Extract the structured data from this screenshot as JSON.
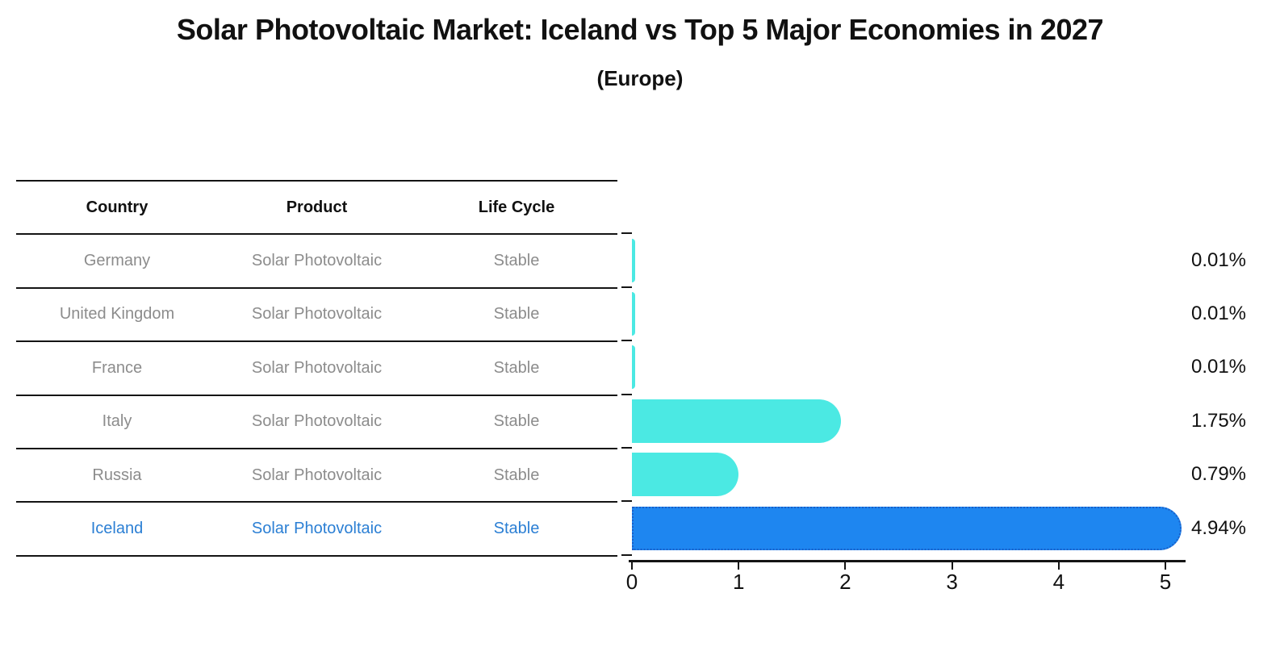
{
  "title": "Solar Photovoltaic Market: Iceland vs Top 5 Major Economies in 2027",
  "subtitle": "(Europe)",
  "colors": {
    "bar_default": "#4be9e3",
    "bar_highlight": "#1e86f0",
    "highlight_border": "#1a5fc8",
    "highlight_text": "#2b7fd4",
    "row_text": "#8c8c8c",
    "header_text": "#111111",
    "line": "#141414"
  },
  "table": {
    "headers": [
      "Country",
      "Product",
      "Life Cycle"
    ],
    "rows": [
      {
        "country": "Germany",
        "product": "Solar Photovoltaic",
        "life_cycle": "Stable",
        "highlight": false
      },
      {
        "country": "United Kingdom",
        "product": "Solar Photovoltaic",
        "life_cycle": "Stable",
        "highlight": false
      },
      {
        "country": "France",
        "product": "Solar Photovoltaic",
        "life_cycle": "Stable",
        "highlight": false
      },
      {
        "country": "Italy",
        "product": "Solar Photovoltaic",
        "life_cycle": "Stable",
        "highlight": false
      },
      {
        "country": "Russia",
        "product": "Solar Photovoltaic",
        "life_cycle": "Stable",
        "highlight": false
      },
      {
        "country": "Iceland",
        "product": "Solar Photovoltaic",
        "life_cycle": "Stable",
        "highlight": true
      }
    ]
  },
  "chart_data": {
    "type": "bar",
    "orientation": "horizontal",
    "title": "Solar Photovoltaic Market: Iceland vs Top 5 Major Economies in 2027 (Europe)",
    "categories": [
      "Germany",
      "United Kingdom",
      "France",
      "Italy",
      "Russia",
      "Iceland"
    ],
    "values": [
      0.01,
      0.01,
      0.01,
      1.75,
      0.79,
      4.94
    ],
    "value_labels": [
      "0.01%",
      "0.01%",
      "0.01%",
      "1.75%",
      "0.79%",
      "4.94%"
    ],
    "highlight_category": "Iceland",
    "xlabel": "",
    "ylabel": "",
    "xlim": [
      0,
      5.2
    ],
    "x_ticks": [
      0,
      1,
      2,
      3,
      4,
      5
    ],
    "grid": false,
    "legend": "none"
  }
}
